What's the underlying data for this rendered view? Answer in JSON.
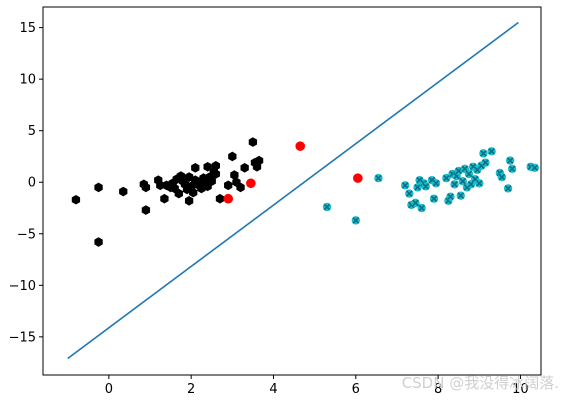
{
  "chart_data": {
    "type": "scatter",
    "xlim": [
      -1.6,
      10.5
    ],
    "ylim": [
      -18.7,
      17.0
    ],
    "xticks": [
      0,
      2,
      4,
      6,
      8,
      10
    ],
    "yticks": [
      -15,
      -10,
      -5,
      0,
      5,
      10,
      15
    ],
    "grid": false,
    "colors": {
      "class_a": "#000000",
      "class_b": "#17becf",
      "highlight": "#ff0000",
      "line": "#1f77b4"
    },
    "series": [
      {
        "marker": "hexagon",
        "color": "#000000",
        "points": [
          [
            -0.8,
            -1.7
          ],
          [
            -0.25,
            -0.5
          ],
          [
            -0.25,
            -5.8
          ],
          [
            0.35,
            -0.9
          ],
          [
            0.85,
            -0.2
          ],
          [
            0.9,
            -0.5
          ],
          [
            0.9,
            -2.7
          ],
          [
            1.2,
            0.2
          ],
          [
            1.25,
            -0.3
          ],
          [
            1.35,
            -1.6
          ],
          [
            1.4,
            -0.3
          ],
          [
            1.5,
            -0.5
          ],
          [
            1.55,
            -0.1
          ],
          [
            1.6,
            -0.6
          ],
          [
            1.65,
            0.3
          ],
          [
            1.7,
            -1.1
          ],
          [
            1.75,
            0.6
          ],
          [
            1.8,
            0.1
          ],
          [
            1.85,
            -0.2
          ],
          [
            1.9,
            -0.7
          ],
          [
            1.95,
            -1.8
          ],
          [
            1.95,
            0.5
          ],
          [
            2.0,
            -0.4
          ],
          [
            2.05,
            -1.0
          ],
          [
            2.1,
            0.2
          ],
          [
            2.1,
            1.4
          ],
          [
            2.15,
            -0.2
          ],
          [
            2.2,
            0.0
          ],
          [
            2.25,
            -0.6
          ],
          [
            2.3,
            0.4
          ],
          [
            2.35,
            0.0
          ],
          [
            2.4,
            -0.4
          ],
          [
            2.4,
            1.5
          ],
          [
            2.45,
            0.5
          ],
          [
            2.5,
            0.1
          ],
          [
            2.55,
            1.0
          ],
          [
            2.6,
            0.8
          ],
          [
            2.6,
            1.6
          ],
          [
            2.7,
            -1.6
          ],
          [
            2.9,
            -0.3
          ],
          [
            3.0,
            2.5
          ],
          [
            3.05,
            0.7
          ],
          [
            3.1,
            0.0
          ],
          [
            3.2,
            -0.5
          ],
          [
            3.3,
            1.4
          ],
          [
            3.5,
            3.9
          ],
          [
            3.55,
            1.9
          ],
          [
            3.6,
            1.5
          ],
          [
            3.65,
            2.1
          ]
        ]
      },
      {
        "marker": "x",
        "color": "#17becf",
        "points": [
          [
            5.3,
            -2.4
          ],
          [
            6.0,
            -3.7
          ],
          [
            6.55,
            0.4
          ],
          [
            7.2,
            -0.3
          ],
          [
            7.3,
            -1.1
          ],
          [
            7.35,
            -2.2
          ],
          [
            7.45,
            -2.0
          ],
          [
            7.5,
            -0.5
          ],
          [
            7.55,
            0.2
          ],
          [
            7.6,
            -2.5
          ],
          [
            7.65,
            -0.1
          ],
          [
            7.7,
            -0.4
          ],
          [
            7.85,
            0.2
          ],
          [
            7.9,
            -1.6
          ],
          [
            7.95,
            -0.1
          ],
          [
            8.2,
            0.4
          ],
          [
            8.25,
            -1.8
          ],
          [
            8.3,
            -1.4
          ],
          [
            8.35,
            0.8
          ],
          [
            8.4,
            -0.2
          ],
          [
            8.45,
            0.6
          ],
          [
            8.5,
            1.1
          ],
          [
            8.55,
            -1.3
          ],
          [
            8.6,
            0.1
          ],
          [
            8.65,
            1.3
          ],
          [
            8.7,
            -0.5
          ],
          [
            8.75,
            0.8
          ],
          [
            8.8,
            -0.2
          ],
          [
            8.85,
            1.5
          ],
          [
            8.9,
            0.3
          ],
          [
            8.95,
            1.2
          ],
          [
            9.0,
            -0.1
          ],
          [
            9.05,
            1.6
          ],
          [
            9.1,
            2.8
          ],
          [
            9.15,
            1.9
          ],
          [
            9.3,
            3.0
          ],
          [
            9.5,
            0.9
          ],
          [
            9.55,
            0.5
          ],
          [
            9.7,
            -0.6
          ],
          [
            9.75,
            2.1
          ],
          [
            9.8,
            1.3
          ],
          [
            10.25,
            1.5
          ],
          [
            10.35,
            1.4
          ]
        ]
      },
      {
        "marker": "circle",
        "color": "#ff0000",
        "points": [
          [
            2.9,
            -1.6
          ],
          [
            3.45,
            -0.1
          ],
          [
            4.65,
            3.5
          ],
          [
            6.05,
            0.4
          ]
        ]
      }
    ],
    "line": {
      "x": [
        -1.0,
        9.95
      ],
      "y": [
        -17.1,
        15.5
      ],
      "color": "#1f77b4"
    }
  },
  "watermark": "CSDN @我没得冰阔落."
}
